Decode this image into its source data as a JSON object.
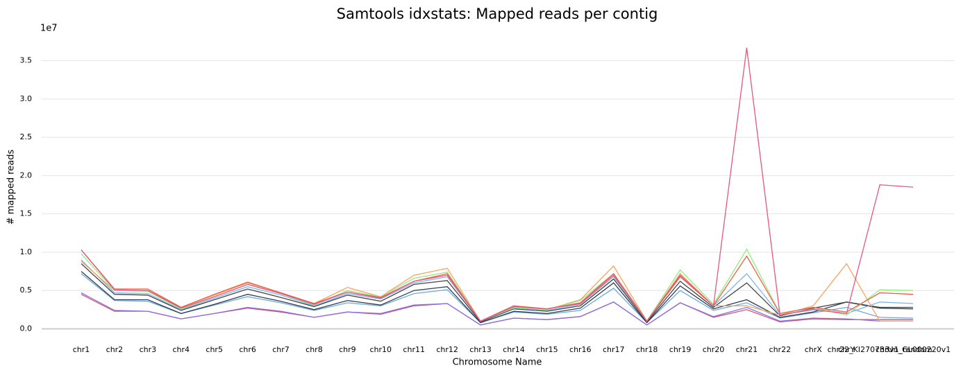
{
  "chart_data": {
    "type": "line",
    "title": "Samtools idxstats: Mapped reads per contig",
    "x_label": "Chromosome Name",
    "y_label": "# mapped reads",
    "y_offset_label": "1e7",
    "categories": [
      "chr1",
      "chr2",
      "chr3",
      "chr4",
      "chr5",
      "chr6",
      "chr7",
      "chr8",
      "chr9",
      "chr10",
      "chr11",
      "chr12",
      "chr13",
      "chr14",
      "chr15",
      "chr16",
      "chr17",
      "chr18",
      "chr19",
      "chr20",
      "chr21",
      "chr22",
      "chrX",
      "chrY",
      "chr22_KI270733v1_random",
      "chrUn_GL000220v1"
    ],
    "ylim": [
      -0.05,
      3.75
    ],
    "yticks": [
      {
        "value": 0,
        "label": "0.0"
      },
      0.5,
      {
        "value": 1,
        "label": "1.0"
      },
      1.5,
      {
        "value": 2,
        "label": "2.0"
      },
      2.5,
      {
        "value": 3,
        "label": "3.0"
      },
      3.5
    ],
    "grid": true,
    "series": [
      {
        "color": "#d9506e",
        "values": [
          0.45,
          0.23,
          0.23,
          0.13,
          0.2,
          0.27,
          0.22,
          0.15,
          0.22,
          0.19,
          0.3,
          0.33,
          0.05,
          0.14,
          0.12,
          0.16,
          0.35,
          0.05,
          0.34,
          0.15,
          0.25,
          0.09,
          0.13,
          0.12,
          0.12,
          0.12
        ]
      },
      {
        "color": "#8a6de0",
        "values": [
          0.47,
          0.24,
          0.23,
          0.13,
          0.2,
          0.28,
          0.23,
          0.15,
          0.22,
          0.2,
          0.31,
          0.33,
          0.05,
          0.14,
          0.12,
          0.16,
          0.35,
          0.05,
          0.34,
          0.16,
          0.28,
          0.1,
          0.14,
          0.13,
          0.1,
          0.1
        ]
      },
      {
        "color": "#6fa8dc",
        "values": [
          0.72,
          0.37,
          0.36,
          0.2,
          0.31,
          0.42,
          0.34,
          0.24,
          0.34,
          0.3,
          0.46,
          0.51,
          0.08,
          0.22,
          0.19,
          0.24,
          0.53,
          0.08,
          0.5,
          0.24,
          0.34,
          0.14,
          0.21,
          0.28,
          0.15,
          0.14
        ]
      },
      {
        "color": "#2c3e50",
        "values": [
          0.75,
          0.38,
          0.38,
          0.2,
          0.32,
          0.45,
          0.36,
          0.25,
          0.37,
          0.31,
          0.5,
          0.55,
          0.08,
          0.23,
          0.2,
          0.27,
          0.6,
          0.08,
          0.56,
          0.26,
          0.38,
          0.15,
          0.22,
          0.35,
          0.27,
          0.26
        ]
      },
      {
        "color": "#434348",
        "values": [
          0.85,
          0.45,
          0.44,
          0.24,
          0.38,
          0.52,
          0.41,
          0.29,
          0.44,
          0.36,
          0.58,
          0.63,
          0.09,
          0.26,
          0.23,
          0.3,
          0.65,
          0.09,
          0.62,
          0.28,
          0.6,
          0.17,
          0.27,
          0.35,
          0.28,
          0.28
        ]
      },
      {
        "color": "#7cb5ec",
        "values": [
          0.9,
          0.47,
          0.46,
          0.25,
          0.4,
          0.55,
          0.44,
          0.3,
          0.46,
          0.39,
          0.6,
          0.68,
          0.1,
          0.27,
          0.24,
          0.32,
          0.68,
          0.1,
          0.7,
          0.3,
          0.72,
          0.18,
          0.26,
          0.2,
          0.35,
          0.33
        ]
      },
      {
        "color": "#f7a35c",
        "values": [
          0.88,
          0.5,
          0.5,
          0.28,
          0.44,
          0.6,
          0.47,
          0.33,
          0.54,
          0.42,
          0.7,
          0.79,
          0.1,
          0.3,
          0.25,
          0.38,
          0.82,
          0.1,
          0.72,
          0.3,
          0.3,
          0.18,
          0.3,
          0.85,
          0.1,
          0.1
        ]
      },
      {
        "color": "#90ee7e",
        "values": [
          0.98,
          0.5,
          0.49,
          0.26,
          0.42,
          0.58,
          0.46,
          0.31,
          0.5,
          0.42,
          0.66,
          0.74,
          0.1,
          0.28,
          0.25,
          0.37,
          0.72,
          0.1,
          0.77,
          0.32,
          1.04,
          0.2,
          0.28,
          0.18,
          0.51,
          0.5
        ]
      },
      {
        "color": "#f15c45",
        "values": [
          1.03,
          0.52,
          0.52,
          0.28,
          0.45,
          0.61,
          0.47,
          0.33,
          0.48,
          0.41,
          0.62,
          0.72,
          0.1,
          0.3,
          0.26,
          0.33,
          0.7,
          0.1,
          0.68,
          0.3,
          0.95,
          0.2,
          0.28,
          0.22,
          0.47,
          0.45
        ]
      },
      {
        "color": "#e8557f",
        "values": [
          1.03,
          0.51,
          0.5,
          0.27,
          0.42,
          0.58,
          0.46,
          0.32,
          0.48,
          0.4,
          0.62,
          0.7,
          0.1,
          0.29,
          0.26,
          0.34,
          0.72,
          0.1,
          0.7,
          0.3,
          3.67,
          0.18,
          0.25,
          0.2,
          1.88,
          1.85
        ]
      }
    ]
  }
}
